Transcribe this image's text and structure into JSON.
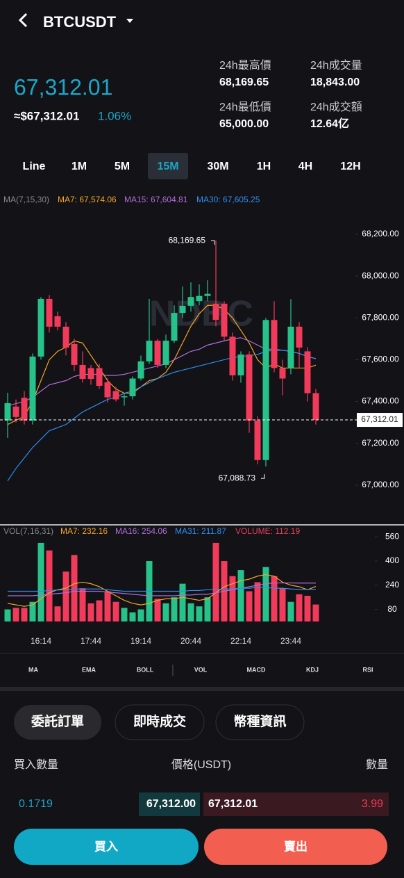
{
  "header": {
    "symbol": "BTCUSDT"
  },
  "ticker": {
    "price": "67,312.01",
    "approx": "≈$67,312.01",
    "change": "1.06%",
    "stats": [
      {
        "label": "24h最高價",
        "value": "68,169.65"
      },
      {
        "label": "24h成交量",
        "value": "18,843.00"
      },
      {
        "label": "24h最低價",
        "value": "65,000.00"
      },
      {
        "label": "24h成交額",
        "value": "12.64亿"
      }
    ]
  },
  "intervals": {
    "items": [
      "Line",
      "1M",
      "5M",
      "15M",
      "30M",
      "1H",
      "4H",
      "12H"
    ],
    "active": 3
  },
  "watermark": "NDBC",
  "chart_data": [
    {
      "type": "candlestick",
      "legend_title": "MA(7,15,30)",
      "categories": [
        null,
        null,
        null,
        null,
        "16:14",
        null,
        null,
        null,
        null,
        null,
        "17:44",
        null,
        null,
        null,
        null,
        null,
        "19:14",
        null,
        null,
        null,
        null,
        null,
        "20:44",
        null,
        null,
        null,
        null,
        null,
        "22:14",
        null,
        null,
        null,
        null,
        null,
        "23:44",
        null,
        null,
        null
      ],
      "open": [
        67309,
        67376,
        67418,
        67309,
        67615,
        67891,
        67808,
        67758,
        67675,
        67575,
        67560,
        67560,
        67492,
        67450,
        67420,
        67425,
        67510,
        67592,
        67691,
        67575,
        67691,
        67824,
        67858,
        67880,
        67905,
        67868,
        67868,
        67710,
        67525,
        67625,
        67309,
        67120,
        67790,
        67560,
        67560,
        67758,
        67640,
        67440
      ],
      "high": [
        67442,
        67410,
        67450,
        67630,
        67900,
        67910,
        67830,
        67780,
        67700,
        67640,
        67575,
        67580,
        67510,
        67470,
        67440,
        67520,
        67620,
        67891,
        67700,
        67720,
        67860,
        67950,
        67970,
        67960,
        67980,
        68169.65,
        67880,
        67730,
        67640,
        67640,
        67330,
        67800,
        67880,
        67600,
        67890,
        67780,
        67660,
        67460
      ],
      "low": [
        67226,
        67300,
        67290,
        67290,
        67600,
        67730,
        67740,
        67620,
        67545,
        67490,
        67480,
        67460,
        67395,
        67400,
        67380,
        67410,
        67500,
        67580,
        67560,
        67560,
        67680,
        67800,
        67830,
        67860,
        67880,
        67760,
        67690,
        67500,
        67490,
        67250,
        67100,
        67088.73,
        67540,
        67430,
        67530,
        67560,
        67400,
        67290
      ],
      "close": [
        67392,
        67326,
        67309,
        67615,
        67891,
        67758,
        67758,
        67658,
        67575,
        67508,
        67508,
        67475,
        67420,
        67410,
        67425,
        67510,
        67592,
        67691,
        67575,
        67691,
        67824,
        67858,
        67900,
        67905,
        67915,
        67790,
        67710,
        67525,
        67625,
        67309,
        67120,
        67790,
        67560,
        67510,
        67758,
        67658,
        67440,
        67312.01
      ],
      "up_color": "#26c28a",
      "down_color": "#f23a5a",
      "series": [
        {
          "name": "MA7: 67,574.06",
          "color": "#f5a623",
          "values": [
            67290,
            67310,
            67330,
            67400,
            67500,
            67600,
            67640,
            67660,
            67690,
            67680,
            67620,
            67560,
            67500,
            67460,
            67440,
            67440,
            67470,
            67500,
            67510,
            67540,
            67600,
            67680,
            67760,
            67820,
            67860,
            67860,
            67840,
            67800,
            67740,
            67680,
            67600,
            67560,
            67580,
            67560,
            67560,
            67560,
            67560,
            67574.06
          ]
        },
        {
          "name": "MA15: 67,604.81",
          "color": "#b06fd8",
          "values": [
            67380,
            67390,
            67400,
            67420,
            67450,
            67480,
            67490,
            67500,
            67520,
            67530,
            67530,
            67530,
            67525,
            67525,
            67530,
            67540,
            67550,
            67560,
            67570,
            67580,
            67600,
            67620,
            67640,
            67650,
            67670,
            67680,
            67690,
            67700,
            67705,
            67690,
            67670,
            67650,
            67650,
            67645,
            67640,
            67630,
            67615,
            67604.81
          ]
        },
        {
          "name": "MA30: 67,605.25",
          "color": "#2f8ff0",
          "values": [
            67020,
            67080,
            67130,
            67180,
            67220,
            67260,
            67275,
            67290,
            67320,
            67350,
            67370,
            67390,
            67410,
            67420,
            67440,
            67450,
            67470,
            67490,
            67510,
            67525,
            67540,
            67550,
            67560,
            67570,
            67580,
            67590,
            67600,
            67610,
            67615,
            67620,
            67625,
            67640,
            67645,
            67645,
            67640,
            67630,
            67615,
            67605.25
          ]
        }
      ],
      "ylim": [
        66820,
        68323
      ],
      "yticks": [
        {
          "value": 67000,
          "label": "67,000.00"
        },
        {
          "value": 67200,
          "label": "67,200.00"
        },
        {
          "value": 67400,
          "label": "67,400.00"
        },
        {
          "value": 67600,
          "label": "67,600.00"
        },
        {
          "value": 67800,
          "label": "67,800.00"
        },
        {
          "value": 68000,
          "label": "68,000.00"
        },
        {
          "value": 68200,
          "label": "68,200.00"
        }
      ],
      "last_price": {
        "value": 67312.01,
        "label": "67,312.01"
      },
      "high_mark": {
        "value": 68169.65,
        "label": "68,169.65"
      },
      "low_mark": {
        "value": 67088.73,
        "label": "67,088.73"
      }
    },
    {
      "type": "bar",
      "legend_title": "VOL(7,16,31)",
      "values": [
        80,
        90,
        90,
        130,
        520,
        470,
        100,
        330,
        440,
        220,
        120,
        140,
        200,
        130,
        90,
        60,
        80,
        400,
        150,
        120,
        160,
        250,
        120,
        100,
        160,
        520,
        400,
        300,
        340,
        200,
        260,
        360,
        300,
        220,
        130,
        180,
        170,
        112.19
      ],
      "series": [
        {
          "name": "MA7: 232.16",
          "color": "#f5a623",
          "values": [
            120,
            110,
            100,
            110,
            150,
            190,
            210,
            220,
            250,
            260,
            250,
            230,
            200,
            170,
            140,
            120,
            110,
            120,
            140,
            150,
            150,
            160,
            150,
            140,
            150,
            190,
            230,
            250,
            270,
            280,
            300,
            310,
            300,
            260,
            240,
            230,
            210,
            232.16
          ]
        },
        {
          "name": "MA16: 254.06",
          "color": "#b06fd8",
          "values": [
            170,
            170,
            170,
            170,
            175,
            180,
            185,
            190,
            200,
            200,
            200,
            200,
            195,
            190,
            185,
            180,
            175,
            170,
            170,
            170,
            170,
            175,
            175,
            180,
            180,
            190,
            200,
            210,
            220,
            230,
            240,
            250,
            255,
            255,
            255,
            254,
            254,
            254.06
          ]
        },
        {
          "name": "MA31: 211.87",
          "color": "#2f8ff0",
          "values": [
            200,
            200,
            200,
            200,
            200,
            205,
            208,
            210,
            215,
            215,
            215,
            215,
            210,
            205,
            200,
            200,
            200,
            200,
            200,
            200,
            200,
            200,
            205,
            205,
            210,
            210,
            215,
            215,
            220,
            220,
            225,
            225,
            220,
            220,
            215,
            212,
            212,
            211.87
          ]
        }
      ],
      "volume_label": "VOLUME: 112.19",
      "ylim": [
        0,
        630
      ],
      "yticks": [
        80,
        240,
        400,
        560
      ]
    }
  ],
  "indicators": [
    "MA",
    "EMA",
    "BOLL",
    "VOL",
    "MACD",
    "KDJ",
    "RSI"
  ],
  "order_tabs": {
    "items": [
      "委託訂單",
      "即時成交",
      "幣種資訊"
    ],
    "active": 0
  },
  "order_book": {
    "headers": [
      "買入數量",
      "價格(USDT)",
      "數量"
    ],
    "bid_amount": "0.1719",
    "bid_price": "67,312.00",
    "ask_price": "67,312.01",
    "ask_amount": "3.99"
  },
  "actions": {
    "buy": "買入",
    "sell": "賣出"
  }
}
